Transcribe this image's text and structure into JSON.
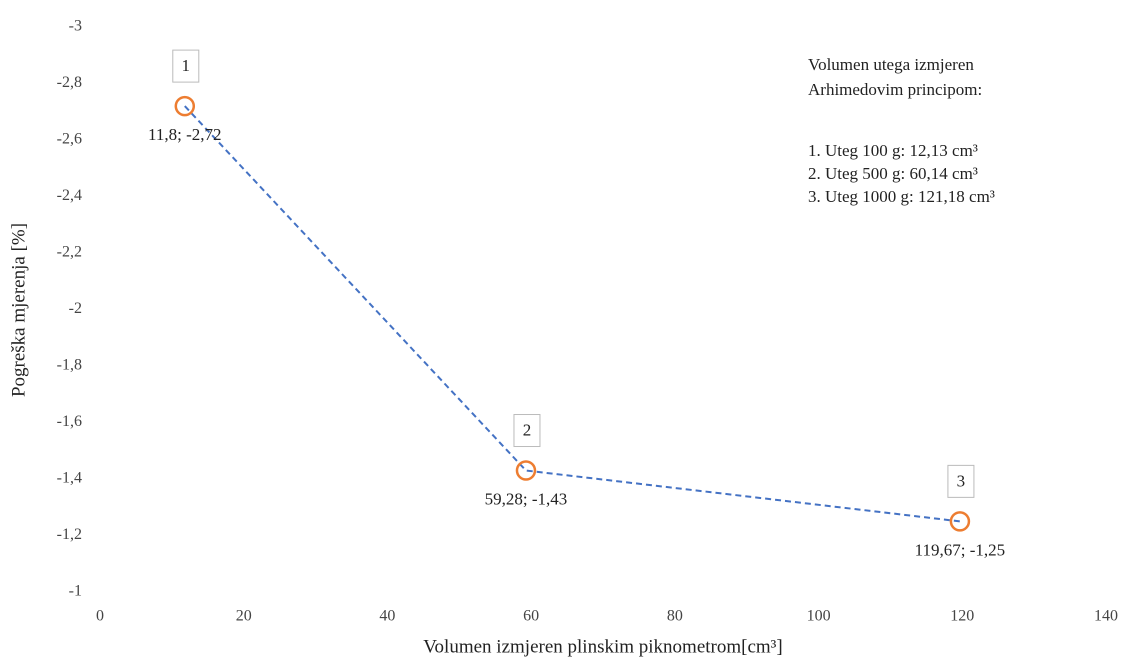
{
  "chart_data": {
    "type": "line",
    "x_label": "Volumen izmjeren plinskim piknometrom[cm³]",
    "y_label": "Pogreška mjerenja [%]",
    "x": [
      11.8,
      59.28,
      119.67
    ],
    "values": [
      -2.72,
      -1.43,
      -1.25
    ],
    "value_labels": [
      "11,8; -2,72",
      "59,28; -1,43",
      "119,67; -1,25"
    ],
    "point_labels": [
      "1",
      "2",
      "3"
    ],
    "line_color": "#4472c4",
    "marker_color": "#ed7d31",
    "xlim": [
      0,
      140
    ],
    "xticks": [
      0,
      20,
      40,
      60,
      80,
      100,
      120,
      140
    ],
    "ylim": [
      -1,
      -3
    ],
    "yticks": [
      -3,
      {
        "value": -2.8,
        "label": "-2,8"
      },
      {
        "value": -2.6,
        "label": "-2,6"
      },
      {
        "value": -2.4,
        "label": "-2,4"
      },
      {
        "value": -2.2,
        "label": "-2,2"
      },
      -2,
      {
        "value": -1.8,
        "label": "-1,8"
      },
      {
        "value": -1.6,
        "label": "-1,6"
      },
      {
        "value": -1.4,
        "label": "-1,4"
      },
      {
        "value": -1.2,
        "label": "-1,2"
      },
      -1
    ],
    "grid": false,
    "annotation_title": [
      "Volumen utega izmjeren",
      "Arhimedovim principom:"
    ],
    "annotation_items": [
      "1. Uteg 100 g: 12,13 cm³",
      "2. Uteg 500 g: 60,14 cm³",
      "3. Uteg 1000 g: 121,18 cm³"
    ]
  }
}
